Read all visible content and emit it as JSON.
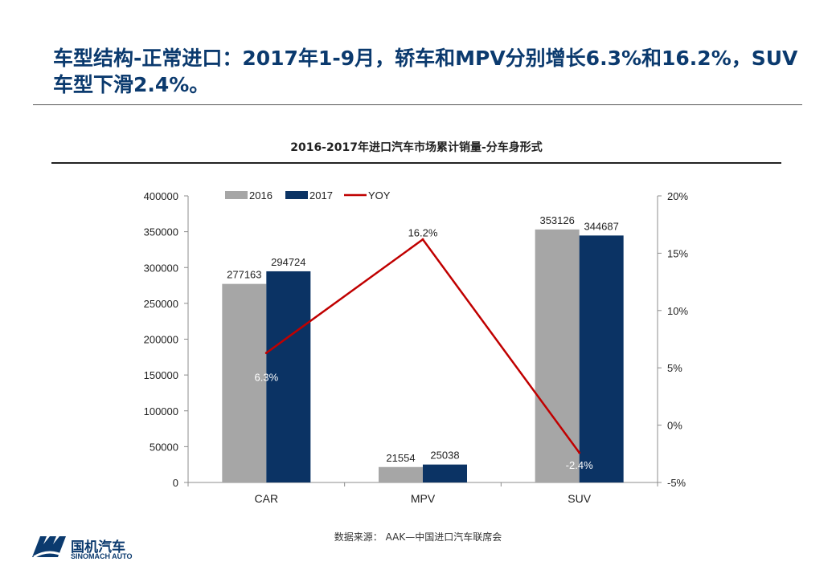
{
  "slide": {
    "title": "车型结构-正常进口：2017年1-9月，轿车和MPV分别增长6.3%和16.2%，SUV车型下滑2.4%。",
    "source": "数据来源： AAK—中国进口汽车联席会"
  },
  "logo": {
    "name_cn": "国机汽车",
    "name_en": "SINOMACH AUTO",
    "color": "#0b3a6e"
  },
  "chart_data": {
    "type": "bar",
    "title": "2016-2017年进口汽车市场累计销量-分车身形式",
    "categories": [
      "CAR",
      "MPV",
      "SUV"
    ],
    "series": [
      {
        "name": "2016",
        "values": [
          277163,
          21554,
          353126
        ],
        "color": "#a6a6a6"
      },
      {
        "name": "2017",
        "values": [
          294724,
          25038,
          344687
        ],
        "color": "#0b3364"
      }
    ],
    "line_series": {
      "name": "YOY",
      "values": [
        6.3,
        16.2,
        -2.4
      ],
      "labels": [
        "6.3%",
        "16.2%",
        "-2.4%"
      ],
      "color": "#c00000"
    },
    "ylim": [
      0,
      400000
    ],
    "yticks": [
      "0",
      "50000",
      "100000",
      "150000",
      "200000",
      "250000",
      "300000",
      "350000",
      "400000"
    ],
    "y2lim": [
      -5,
      20
    ],
    "y2ticks": [
      "-5%",
      "0%",
      "5%",
      "10%",
      "15%",
      "20%"
    ],
    "legend_position": "top-left",
    "grid": false
  }
}
